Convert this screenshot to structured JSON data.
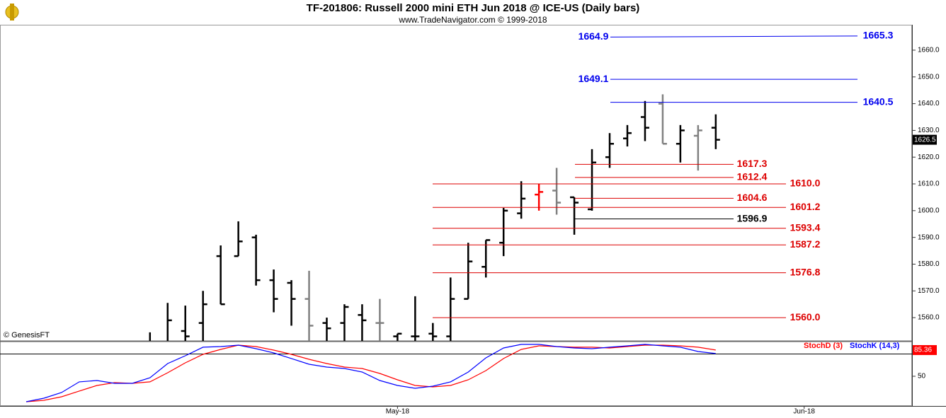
{
  "chart_data": [
    {
      "type": "ohlc",
      "title": "TF-201806:  Russell 2000 mini ETH Jun 2018 @ ICE-US  (Daily bars)",
      "subtitle": "www.TradeNavigator.com © 1999-2018",
      "watermark": "© GenesisFT",
      "open": [
        null,
        null,
        null,
        null,
        null,
        null,
        null,
        1549,
        1550,
        1555,
        1558,
        1583,
        1583,
        1590,
        1574,
        1573,
        1567,
        1558,
        1558,
        1561,
        1558,
        1553,
        1553,
        1554,
        1553,
        1567,
        1579,
        1588,
        1599,
        1606,
        1607.5,
        1605,
        1600.5,
        1620,
        1627,
        1635,
        1640,
        1625,
        1628,
        1631,
        null,
        null,
        null,
        null,
        null
      ],
      "high": [
        null,
        null,
        null,
        null,
        null,
        null,
        null,
        1554.5,
        1565.5,
        1564.5,
        1570,
        1587,
        1596,
        1591,
        1578,
        1574,
        1577.5,
        1560,
        1565,
        1565,
        1567,
        1554,
        1568,
        1558,
        1575,
        1588,
        1589,
        1601,
        1611,
        1610,
        1616,
        1605,
        1623,
        1629,
        1632,
        1641,
        1643.5,
        1632,
        1632,
        1636,
        null,
        null,
        null,
        null,
        null
      ],
      "low": [
        null,
        null,
        null,
        null,
        null,
        null,
        null,
        1546,
        1548,
        1550,
        1550,
        1565,
        1583,
        1572,
        1562,
        1557,
        1549,
        1549,
        1549,
        1549,
        1549,
        1549,
        1549,
        1549,
        1549,
        1567,
        1575,
        1583,
        1597,
        1600,
        1598.5,
        1591,
        1600,
        1616,
        1624,
        1626,
        1625,
        1618,
        1615,
        1623,
        null,
        null,
        null,
        null,
        null
      ],
      "close": [
        null,
        null,
        null,
        null,
        null,
        null,
        null,
        1550,
        1559,
        1553,
        1565,
        1565,
        1588.5,
        1574,
        1567,
        1567,
        1557,
        1556,
        1564,
        1559,
        1558,
        1554,
        1553,
        1553,
        1567,
        1581,
        1589,
        1600,
        1604.5,
        1607,
        1603,
        1603,
        1618,
        1625,
        1629,
        1631,
        1625,
        1630,
        1630,
        1626.5,
        null,
        null,
        null,
        null,
        null
      ],
      "colors": [
        null,
        null,
        null,
        null,
        null,
        null,
        null,
        "#000000",
        "#000000",
        "#000000",
        "#000000",
        "#000000",
        "#000000",
        "#000000",
        "#000000",
        "#000000",
        "#808080",
        "#000000",
        "#000000",
        "#000000",
        "#808080",
        "#000000",
        "#000000",
        "#000000",
        "#000000",
        "#000000",
        "#000000",
        "#000000",
        "#000000",
        "#ff0000",
        "#808080",
        "#000000",
        "#000000",
        "#000000",
        "#000000",
        "#000000",
        "#808080",
        "#000000",
        "#808080",
        "#000000",
        null,
        null,
        null,
        null,
        null
      ],
      "levels": [
        {
          "value": 1664.9,
          "end": 1665.3,
          "color": "#0000ee"
        },
        {
          "value": 1649.1,
          "color": "#0000ee"
        },
        {
          "value": 1640.5,
          "color": "#0000ee"
        },
        {
          "value": 1617.3,
          "color": "#dd0000"
        },
        {
          "value": 1612.4,
          "color": "#dd0000"
        },
        {
          "value": 1610,
          "label": "1610.0",
          "color": "#dd0000"
        },
        {
          "value": 1604.6,
          "color": "#dd0000"
        },
        {
          "value": 1601.2,
          "color": "#dd0000"
        },
        {
          "value": 1596.9,
          "color": "#000000"
        },
        {
          "value": 1593.4,
          "color": "#dd0000"
        },
        {
          "value": 1587.2,
          "color": "#dd0000"
        },
        {
          "value": 1576.8,
          "color": "#dd0000"
        },
        {
          "value": 1560,
          "label": "1560.0",
          "color": "#dd0000"
        }
      ],
      "ylim": [
        1551.3,
        1669.5
      ],
      "yticks": [
        {
          "value": 1560,
          "label": "1560.0"
        },
        {
          "value": 1570,
          "label": "1570.0"
        },
        {
          "value": 1580,
          "label": "1580.0"
        },
        {
          "value": 1590,
          "label": "1590.0"
        },
        {
          "value": 1600,
          "label": "1600.0"
        },
        {
          "value": 1610,
          "label": "1610.0"
        },
        {
          "value": 1620,
          "label": "1620.0"
        },
        {
          "value": 1630,
          "label": "1630.0"
        },
        {
          "value": 1640,
          "label": "1640.0"
        },
        {
          "value": 1650,
          "label": "1650.0"
        },
        {
          "value": 1660,
          "label": "1660.0"
        }
      ]
    },
    {
      "type": "line",
      "categories": [
        null,
        null,
        null,
        null,
        null,
        null,
        null,
        null,
        null,
        null,
        null,
        null,
        null,
        null,
        null,
        null,
        null,
        null,
        null,
        null,
        null,
        "May-18",
        null,
        null,
        null,
        null,
        null,
        null,
        null,
        null,
        null,
        null,
        null,
        null,
        null,
        null,
        null,
        null,
        null,
        null,
        null,
        null,
        null,
        null,
        "Jun-18"
      ],
      "series": [
        {
          "name": "StochD (3)",
          "color": "#ff0000",
          "values": [
            15.6,
            17.5,
            22.3,
            30,
            37.6,
            41.4,
            40.4,
            42.4,
            54.8,
            68.1,
            79.6,
            86.3,
            92,
            90.1,
            85.3,
            79.6,
            72.9,
            67.2,
            62.4,
            60.5,
            53.8,
            45.2,
            37.6,
            35.7,
            37.6,
            45.2,
            57.6,
            73.9,
            86.3,
            91,
            90.1,
            89.2,
            89.2,
            88.2,
            90.1,
            92,
            92,
            91,
            89.2,
            85.36,
            null,
            null,
            null,
            null,
            null
          ]
        },
        {
          "name": "StochK (14,3)",
          "color": "#0000ff",
          "values": [
            15.6,
            20.4,
            28,
            42.4,
            44.3,
            40.4,
            40.4,
            48,
            67.2,
            77.7,
            89.2,
            90.1,
            92,
            87.2,
            81.5,
            73.9,
            66.2,
            62.4,
            60.5,
            55.7,
            44.3,
            37.6,
            33.8,
            36.6,
            42.4,
            55.7,
            74.8,
            88.2,
            93,
            93,
            90.1,
            88.2,
            87.2,
            89.2,
            91,
            93,
            91,
            89.2,
            83.4,
            80.6,
            null,
            null,
            null,
            null,
            null
          ]
        }
      ],
      "reference_lines": [
        80
      ],
      "ylim": [
        9.9,
        95.8
      ],
      "yticks": [
        50
      ]
    }
  ]
}
